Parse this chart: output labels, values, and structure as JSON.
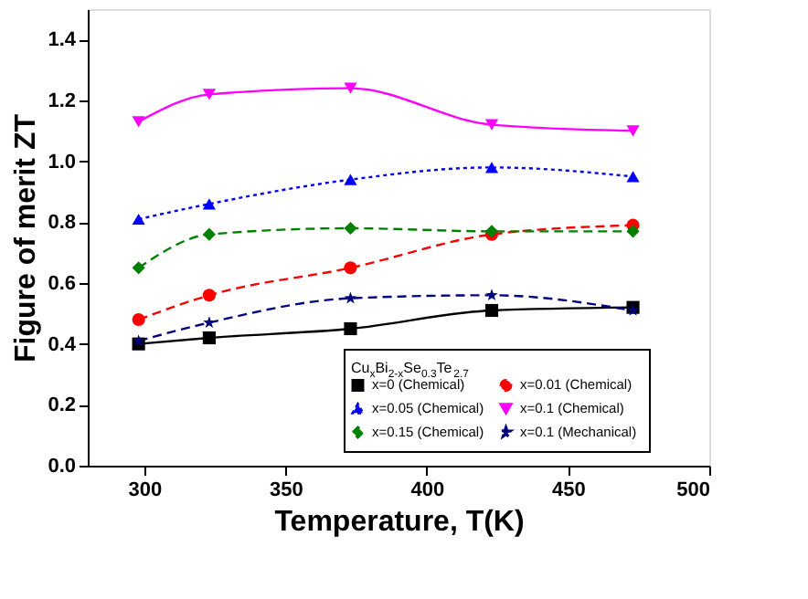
{
  "chart_data": {
    "type": "line",
    "xlabel": "Temperature, T(K)",
    "ylabel": "Figure of merit ZT",
    "legend_title": "Cu$_{x}$Bi$_{2-x}$Se$_{0.3}$Te$_{2.7}$",
    "legend": "bottom right",
    "grid": false,
    "xlim": [
      280,
      500
    ],
    "xticks": [
      300,
      350,
      400,
      450,
      500
    ],
    "ylim": [
      0,
      1.5
    ],
    "yticks": [
      {
        "value": 0,
        "label": "0.0"
      },
      0.2,
      0.4,
      0.6,
      0.8,
      {
        "value": 1,
        "label": "1.0"
      },
      1.2,
      1.4
    ],
    "x": [
      298,
      323,
      373,
      423,
      473
    ],
    "series": [
      {
        "name": "x=0  (Chemical)",
        "color": "#000000",
        "marker": "square",
        "line_style": "solid",
        "values": [
          0.4,
          0.42,
          0.45,
          0.51,
          0.52
        ]
      },
      {
        "name": "x=0.01 (Chemical)",
        "color": "#ff0000",
        "marker": "circle",
        "line_style": "dashed",
        "values": [
          0.48,
          0.56,
          0.65,
          0.76,
          0.79
        ]
      },
      {
        "name": "x=0.05 (Chemical)",
        "color": "#0000ff",
        "marker": "triangle",
        "line_style": "dotted",
        "values": [
          0.81,
          0.86,
          0.94,
          0.98,
          0.95
        ]
      },
      {
        "name": "x=0.1 (Chemical)",
        "color": "#ff00ff",
        "marker": "triangle-down",
        "line_style": "solid",
        "values": [
          1.13,
          1.22,
          1.24,
          1.12,
          1.1
        ]
      },
      {
        "name": "x=0.15 (Chemical)",
        "color": "#008000",
        "marker": "diamond",
        "line_style": "dashed",
        "values": [
          0.65,
          0.76,
          0.78,
          0.77,
          0.77
        ]
      },
      {
        "name": "x=0.1  (Mechanical)",
        "color": "#000080",
        "marker": "star",
        "line_style": "dashed",
        "values": [
          0.41,
          0.47,
          0.55,
          0.56,
          0.51
        ]
      }
    ]
  }
}
